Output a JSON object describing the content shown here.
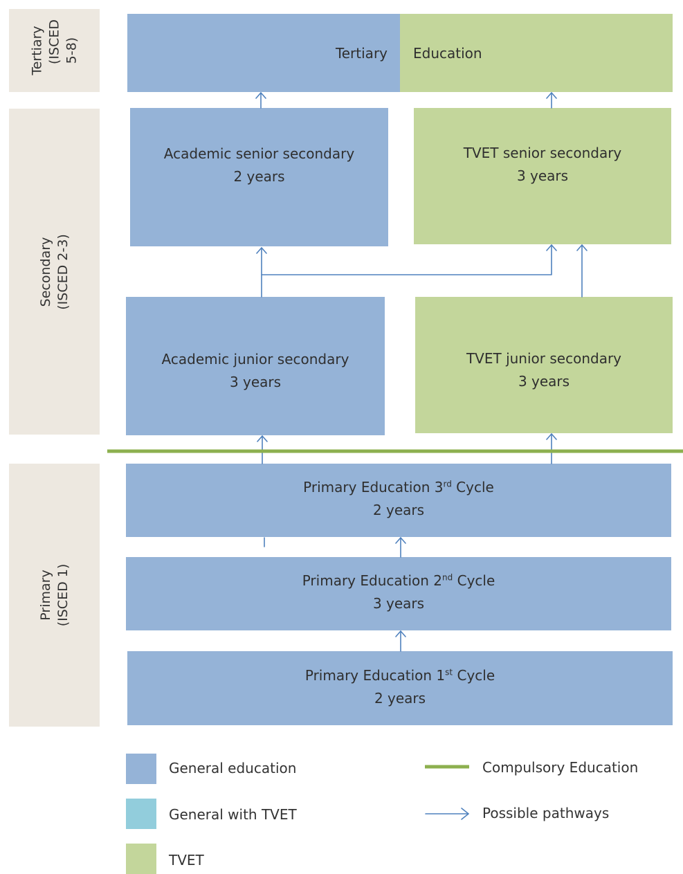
{
  "levels": {
    "tertiary": {
      "line1": "Tertiary",
      "line2": "(ISCED 5-8)"
    },
    "secondary": {
      "line1": "Secondary",
      "line2": "(ISCED 2-3)"
    },
    "primary": {
      "line1": "Primary",
      "line2": "(ISCED 1)"
    }
  },
  "tertiary": {
    "left_label": "Tertiary",
    "right_label": "Education"
  },
  "boxes": {
    "academic_senior": {
      "line1": "Academic senior secondary",
      "line2": "2 years"
    },
    "tvet_senior": {
      "line1": "TVET senior secondary",
      "line2": "3 years"
    },
    "academic_junior": {
      "line1": "Academic junior secondary",
      "line2": "3 years"
    },
    "tvet_junior": {
      "line1": "TVET junior secondary",
      "line2": "3 years"
    },
    "primary3": {
      "prefix": "Primary Education 3",
      "sup": "rd",
      "suffix": " Cycle",
      "line2": "2 years"
    },
    "primary2": {
      "prefix": "Primary Education 2",
      "sup": "nd",
      "suffix": " Cycle",
      "line2": "3 years"
    },
    "primary1": {
      "prefix": "Primary Education 1",
      "sup": "st",
      "suffix": " Cycle",
      "line2": "2 years"
    }
  },
  "legend": {
    "general": "General education",
    "general_tvet": "General with TVET",
    "tvet": "TVET",
    "compulsory": "Compulsory Education",
    "pathways": "Possible pathways"
  },
  "colors": {
    "general": "#95b3d7",
    "general_tvet": "#92cddc",
    "tvet": "#c3d69b",
    "compulsory_line": "#8db04f",
    "arrow": "#4f81bd",
    "level_bg": "#ede8e0"
  }
}
